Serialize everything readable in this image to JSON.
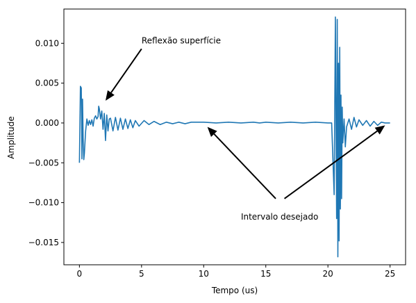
{
  "chart_data": {
    "type": "line",
    "title": "",
    "xlabel": "Tempo (us)",
    "ylabel": "Amplitude",
    "xlim": [
      -1.25,
      26.25
    ],
    "ylim": [
      -0.0178,
      0.0143
    ],
    "xticks": [
      0,
      5,
      10,
      15,
      20,
      25
    ],
    "xtick_labels": [
      "0",
      "5",
      "10",
      "15",
      "20",
      "25"
    ],
    "yticks": [
      -0.015,
      -0.01,
      -0.005,
      0.0,
      0.005,
      0.01
    ],
    "ytick_labels": [
      "−0.015",
      "−0.010",
      "−0.005",
      "0.000",
      "0.005",
      "0.010"
    ],
    "grid": false,
    "series": [
      {
        "color": "#1f77b4",
        "x": [
          0.0,
          0.08,
          0.15,
          0.2,
          0.25,
          0.3,
          0.35,
          0.4,
          0.5,
          0.6,
          0.7,
          0.8,
          0.9,
          1.0,
          1.1,
          1.2,
          1.3,
          1.4,
          1.5,
          1.55,
          1.6,
          1.7,
          1.8,
          1.9,
          2.0,
          2.1,
          2.2,
          2.3,
          2.4,
          2.5,
          2.7,
          2.9,
          3.1,
          3.3,
          3.5,
          3.7,
          3.9,
          4.1,
          4.3,
          4.5,
          4.8,
          5.2,
          5.6,
          6.0,
          6.5,
          7.0,
          7.5,
          8.0,
          8.5,
          9.0,
          10.0,
          11.0,
          12.0,
          13.0,
          14.0,
          14.5,
          15.0,
          16.0,
          17.0,
          18.0,
          19.0,
          20.0,
          20.3,
          20.5,
          20.6,
          20.7,
          20.75,
          20.8,
          20.85,
          20.9,
          20.95,
          21.0,
          21.05,
          21.1,
          21.15,
          21.2,
          21.3,
          21.4,
          21.5,
          21.7,
          21.9,
          22.1,
          22.3,
          22.5,
          22.8,
          23.1,
          23.4,
          23.7,
          24.0,
          24.3,
          24.6,
          25.0
        ],
        "y": [
          -0.005,
          0.0046,
          0.0044,
          -0.0045,
          0.003,
          -0.002,
          -0.0046,
          -0.0038,
          -0.001,
          0.0005,
          -0.0003,
          0.0003,
          -0.0002,
          0.0004,
          -0.0004,
          0.0006,
          0.0009,
          0.0005,
          0.0008,
          0.0021,
          0.0018,
          0.0005,
          0.0015,
          -0.0008,
          0.0012,
          -0.0022,
          0.001,
          -0.001,
          0.0005,
          0.0006,
          -0.001,
          0.0007,
          -0.0009,
          0.0006,
          -0.0008,
          0.0005,
          -0.0007,
          0.0004,
          -0.0006,
          0.0003,
          -0.0004,
          0.0003,
          -0.0002,
          0.0002,
          -0.0002,
          0.0001,
          -0.0001,
          0.0001,
          -0.0001,
          0.0001,
          0.0001,
          0.0,
          0.0001,
          0.0,
          0.0001,
          0.0,
          0.0001,
          0.0,
          0.0001,
          0.0,
          0.0001,
          0.0,
          0.0,
          -0.009,
          0.0133,
          -0.012,
          0.013,
          -0.0168,
          0.0075,
          -0.0148,
          0.0095,
          -0.0108,
          0.0035,
          -0.0095,
          0.002,
          -0.0025,
          0.0005,
          -0.003,
          -0.0005,
          0.0005,
          -0.0008,
          0.0007,
          -0.0005,
          0.0004,
          -0.0003,
          0.0003,
          -0.0004,
          0.0002,
          -0.0003,
          0.0001,
          0.0,
          0.0
        ]
      }
    ],
    "annotations": [
      {
        "text": "Reflexão superfície",
        "xy": [
          2.1,
          0.0028
        ],
        "xytext": [
          5.0,
          0.0093
        ]
      },
      {
        "text": "Intervalo desejado",
        "xy": [
          10.3,
          -0.0005
        ],
        "xytext": [
          15.8,
          -0.0095
        ],
        "text_pos": [
          13.0,
          -0.0118
        ]
      },
      {
        "text": "",
        "xy": [
          24.6,
          -0.0003
        ],
        "xytext": [
          16.5,
          -0.0095
        ]
      }
    ]
  }
}
